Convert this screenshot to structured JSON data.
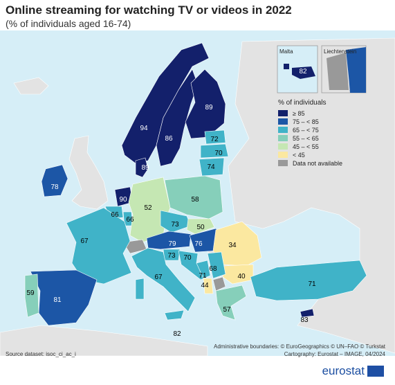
{
  "title": "Online streaming for watching TV or videos in 2022",
  "subtitle": "(% of individuals aged 16-74)",
  "legend": {
    "title": "% of individuals",
    "items": [
      {
        "label": "≥ 85",
        "color": "#13206b"
      },
      {
        "label": "75 – < 85",
        "color": "#1c56a6"
      },
      {
        "label": "65 – < 75",
        "color": "#40b3c8"
      },
      {
        "label": "55 – < 65",
        "color": "#86cfba"
      },
      {
        "label": "45 – < 55",
        "color": "#c5e7b3"
      },
      {
        "label": "< 45",
        "color": "#fbe8a0"
      },
      {
        "label": "Data not available",
        "color": "#999999"
      }
    ]
  },
  "insets": [
    {
      "name": "Malta",
      "value": "82"
    },
    {
      "name": "Liechtenstein",
      "value": ""
    }
  ],
  "countries": [
    {
      "name": "Norway",
      "value": "94"
    },
    {
      "name": "Sweden",
      "value": "86"
    },
    {
      "name": "Finland",
      "value": "89"
    },
    {
      "name": "Denmark",
      "value": "89"
    },
    {
      "name": "Ireland",
      "value": "78"
    },
    {
      "name": "Netherlands",
      "value": "90"
    },
    {
      "name": "Belgium",
      "value": "66"
    },
    {
      "name": "Luxembourg",
      "value": "66"
    },
    {
      "name": "France",
      "value": "67"
    },
    {
      "name": "Germany",
      "value": "52"
    },
    {
      "name": "Poland",
      "value": "58"
    },
    {
      "name": "Estonia",
      "value": "72"
    },
    {
      "name": "Latvia",
      "value": "70"
    },
    {
      "name": "Lithuania",
      "value": "74"
    },
    {
      "name": "Czechia",
      "value": "73"
    },
    {
      "name": "Slovakia",
      "value": "50"
    },
    {
      "name": "Austria",
      "value": "79"
    },
    {
      "name": "Hungary",
      "value": "76"
    },
    {
      "name": "Slovenia",
      "value": "73"
    },
    {
      "name": "Croatia",
      "value": "70"
    },
    {
      "name": "Bosnia and Herzegovina",
      "value": "71"
    },
    {
      "name": "Serbia",
      "value": "68"
    },
    {
      "name": "Romania",
      "value": "34"
    },
    {
      "name": "Bulgaria",
      "value": "40"
    },
    {
      "name": "Montenegro",
      "value": "44"
    },
    {
      "name": "Greece",
      "value": "57"
    },
    {
      "name": "Italy",
      "value": "67"
    },
    {
      "name": "Spain",
      "value": "81"
    },
    {
      "name": "Portugal",
      "value": "59"
    },
    {
      "name": "Turkey",
      "value": "71"
    },
    {
      "name": "Cyprus",
      "value": "83"
    },
    {
      "name": "Malta",
      "value": "82"
    },
    {
      "name": "Switzerland",
      "value": ""
    }
  ],
  "footer": {
    "source": "Source dataset: isoc_ci_ac_i",
    "boundaries": "Administrative boundaries: © EuroGeographics © UN–FAO © Turkstat",
    "cartography": "Cartography: Eurostat – IMAGE, 04/2024",
    "brand": "eurostat"
  }
}
